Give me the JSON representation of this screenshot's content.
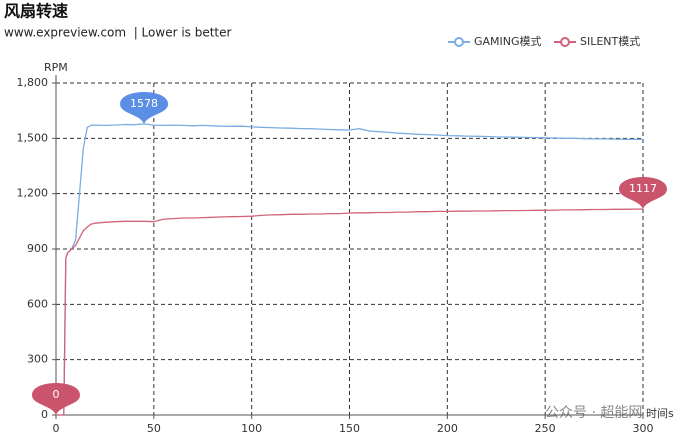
{
  "chart_data": {
    "type": "line",
    "title": "风扇转速",
    "subtitle": "www.expreview.com  | Lower is better",
    "y_label": "RPM",
    "x_label": "时间s",
    "watermark": "公众号 · 超能网",
    "legend": "top-right",
    "grid": true,
    "xlim": [
      0,
      300
    ],
    "xticks": [
      0,
      50,
      100,
      150,
      200,
      250,
      300
    ],
    "ylim": [
      0,
      1800
    ],
    "yticks": [
      0,
      300,
      600,
      900,
      {
        "value": 1200,
        "label": "1,200"
      },
      {
        "value": 1500,
        "label": "1,500"
      },
      {
        "value": 1800,
        "label": "1,800"
      }
    ],
    "x": [
      0,
      2,
      4,
      5,
      6,
      8,
      10,
      12,
      14,
      16,
      18,
      20,
      25,
      30,
      35,
      40,
      45,
      50,
      55,
      60,
      65,
      70,
      75,
      80,
      85,
      90,
      95,
      100,
      105,
      110,
      115,
      120,
      125,
      130,
      135,
      140,
      145,
      150,
      155,
      160,
      165,
      170,
      175,
      180,
      185,
      190,
      195,
      200,
      205,
      210,
      215,
      220,
      225,
      230,
      235,
      240,
      245,
      250,
      255,
      260,
      265,
      270,
      275,
      280,
      285,
      290,
      295,
      300
    ],
    "series": [
      {
        "name": "GAMING模式",
        "color": "#7aaee3",
        "pin_color": "#5b8fe6",
        "values": [
          0,
          0,
          0,
          850,
          880,
          900,
          950,
          1200,
          1450,
          1560,
          1570,
          1572,
          1570,
          1572,
          1575,
          1574,
          1578,
          1572,
          1570,
          1572,
          1570,
          1568,
          1570,
          1568,
          1566,
          1565,
          1566,
          1562,
          1560,
          1558,
          1556,
          1555,
          1553,
          1552,
          1550,
          1548,
          1546,
          1545,
          1552,
          1540,
          1536,
          1532,
          1528,
          1525,
          1522,
          1520,
          1518,
          1515,
          1514,
          1512,
          1511,
          1510,
          1508,
          1507,
          1506,
          1505,
          1504,
          1503,
          1502,
          1500,
          1500,
          1498,
          1497,
          1497,
          1496,
          1495,
          1495,
          1494
        ]
      },
      {
        "name": "SILENT模式",
        "color": "#d1647a",
        "pin_color": "#c9546b",
        "values": [
          0,
          0,
          0,
          850,
          880,
          900,
          920,
          960,
          1000,
          1020,
          1035,
          1040,
          1045,
          1048,
          1050,
          1050,
          1050,
          1048,
          1062,
          1065,
          1068,
          1068,
          1070,
          1072,
          1074,
          1075,
          1076,
          1078,
          1082,
          1085,
          1086,
          1088,
          1088,
          1090,
          1090,
          1092,
          1092,
          1095,
          1096,
          1096,
          1098,
          1098,
          1100,
          1100,
          1102,
          1102,
          1104,
          1104,
          1105,
          1105,
          1106,
          1106,
          1107,
          1108,
          1108,
          1109,
          1110,
          1110,
          1111,
          1112,
          1112,
          1113,
          1114,
          1114,
          1115,
          1115,
          1116,
          1117
        ]
      }
    ],
    "mark_points": [
      {
        "series": 0,
        "x": 45,
        "value": 1578
      },
      {
        "series": 1,
        "x": 300,
        "value": 1117
      },
      {
        "series": 1,
        "x": 0,
        "value": 0
      }
    ]
  }
}
